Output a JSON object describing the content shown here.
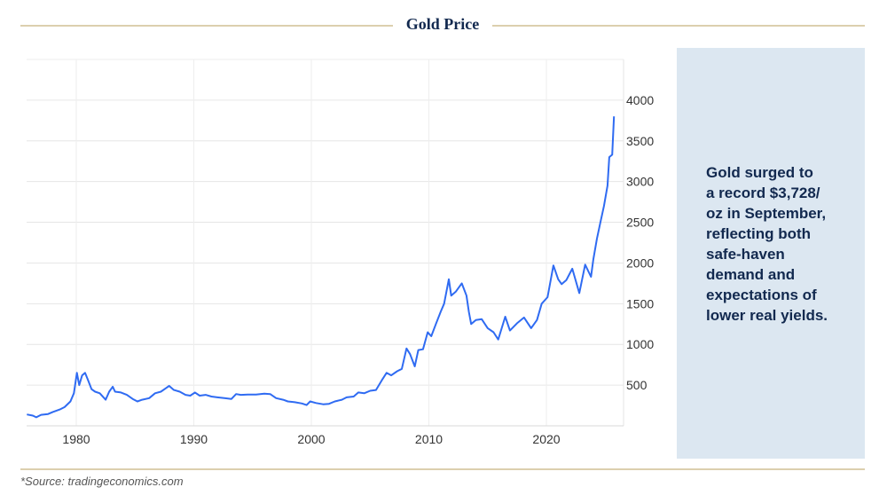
{
  "title": "Gold Price",
  "panel": {
    "lines": [
      "Gold surged to",
      "a record $3,728/",
      "oz in September,",
      "reflecting both",
      "safe-haven",
      "demand and",
      "expectations of",
      "lower real yields."
    ]
  },
  "source": "*Source: tradingeconomics.com",
  "colors": {
    "line": "#2f6bf2",
    "panel": "#dce7f1",
    "text": "#12294f",
    "rule": "#dccfae"
  },
  "chart_data": {
    "type": "line",
    "title": "Gold Price",
    "xlabel": "",
    "ylabel": "",
    "xlim": [
      1975.8,
      2026.6
    ],
    "ylim": [
      0,
      4500
    ],
    "xticks": [
      1980,
      1990,
      2000,
      2010,
      2020
    ],
    "yticks": [
      500,
      1000,
      1500,
      2000,
      2500,
      3000,
      3500,
      4000
    ],
    "grid": true,
    "series": [
      {
        "name": "Gold",
        "points": [
          [
            1975.8,
            140
          ],
          [
            1976.3,
            125
          ],
          [
            1976.6,
            105
          ],
          [
            1977,
            135
          ],
          [
            1977.6,
            145
          ],
          [
            1978,
            170
          ],
          [
            1978.6,
            200
          ],
          [
            1979,
            230
          ],
          [
            1979.5,
            300
          ],
          [
            1979.8,
            400
          ],
          [
            1980.05,
            650
          ],
          [
            1980.25,
            500
          ],
          [
            1980.5,
            620
          ],
          [
            1980.75,
            650
          ],
          [
            1981,
            560
          ],
          [
            1981.3,
            450
          ],
          [
            1981.6,
            420
          ],
          [
            1982,
            400
          ],
          [
            1982.5,
            320
          ],
          [
            1982.8,
            420
          ],
          [
            1983.1,
            480
          ],
          [
            1983.3,
            420
          ],
          [
            1983.8,
            410
          ],
          [
            1984.3,
            380
          ],
          [
            1984.8,
            330
          ],
          [
            1985.2,
            300
          ],
          [
            1985.6,
            320
          ],
          [
            1986.2,
            340
          ],
          [
            1986.7,
            400
          ],
          [
            1987.2,
            420
          ],
          [
            1987.6,
            460
          ],
          [
            1987.9,
            490
          ],
          [
            1988.3,
            440
          ],
          [
            1988.8,
            420
          ],
          [
            1989.3,
            380
          ],
          [
            1989.7,
            370
          ],
          [
            1990.1,
            410
          ],
          [
            1990.5,
            370
          ],
          [
            1991,
            380
          ],
          [
            1991.5,
            360
          ],
          [
            1992,
            350
          ],
          [
            1992.6,
            340
          ],
          [
            1993.2,
            330
          ],
          [
            1993.6,
            390
          ],
          [
            1994,
            380
          ],
          [
            1994.6,
            385
          ],
          [
            1995.3,
            385
          ],
          [
            1996,
            395
          ],
          [
            1996.5,
            390
          ],
          [
            1997,
            340
          ],
          [
            1997.6,
            320
          ],
          [
            1998,
            300
          ],
          [
            1998.6,
            290
          ],
          [
            1999.2,
            275
          ],
          [
            1999.6,
            255
          ],
          [
            1999.9,
            300
          ],
          [
            2000.4,
            280
          ],
          [
            2001,
            265
          ],
          [
            2001.5,
            270
          ],
          [
            2002,
            300
          ],
          [
            2002.6,
            320
          ],
          [
            2003,
            350
          ],
          [
            2003.6,
            360
          ],
          [
            2004,
            410
          ],
          [
            2004.5,
            400
          ],
          [
            2005,
            430
          ],
          [
            2005.5,
            440
          ],
          [
            2006,
            560
          ],
          [
            2006.4,
            650
          ],
          [
            2006.8,
            620
          ],
          [
            2007.3,
            670
          ],
          [
            2007.7,
            700
          ],
          [
            2008.1,
            950
          ],
          [
            2008.4,
            880
          ],
          [
            2008.8,
            730
          ],
          [
            2009.1,
            930
          ],
          [
            2009.5,
            940
          ],
          [
            2009.9,
            1150
          ],
          [
            2010.2,
            1100
          ],
          [
            2010.6,
            1250
          ],
          [
            2011,
            1400
          ],
          [
            2011.3,
            1500
          ],
          [
            2011.7,
            1800
          ],
          [
            2011.9,
            1600
          ],
          [
            2012.3,
            1650
          ],
          [
            2012.8,
            1750
          ],
          [
            2013.2,
            1600
          ],
          [
            2013.4,
            1400
          ],
          [
            2013.6,
            1250
          ],
          [
            2014,
            1300
          ],
          [
            2014.5,
            1310
          ],
          [
            2015,
            1200
          ],
          [
            2015.5,
            1150
          ],
          [
            2015.9,
            1060
          ],
          [
            2016.5,
            1340
          ],
          [
            2016.9,
            1170
          ],
          [
            2017.5,
            1260
          ],
          [
            2018.1,
            1330
          ],
          [
            2018.7,
            1200
          ],
          [
            2019.2,
            1300
          ],
          [
            2019.6,
            1500
          ],
          [
            2020.1,
            1580
          ],
          [
            2020.6,
            1970
          ],
          [
            2021,
            1800
          ],
          [
            2021.3,
            1740
          ],
          [
            2021.7,
            1790
          ],
          [
            2022.2,
            1930
          ],
          [
            2022.8,
            1630
          ],
          [
            2023.3,
            1980
          ],
          [
            2023.8,
            1830
          ],
          [
            2024,
            2050
          ],
          [
            2024.3,
            2300
          ],
          [
            2024.6,
            2500
          ],
          [
            2024.9,
            2700
          ],
          [
            2025.2,
            2950
          ],
          [
            2025.35,
            3300
          ],
          [
            2025.6,
            3330
          ],
          [
            2025.75,
            3800
          ]
        ]
      }
    ]
  }
}
